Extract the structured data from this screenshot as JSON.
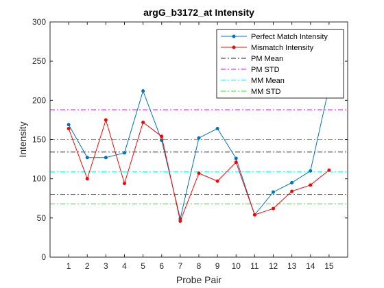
{
  "chart_data": {
    "type": "line",
    "title": "argG_b3172_at Intensity",
    "xlabel": "Probe Pair",
    "ylabel": "Intensity",
    "xlim": [
      0,
      16
    ],
    "ylim": [
      0,
      300
    ],
    "x_ticks": [
      1,
      2,
      3,
      4,
      5,
      6,
      7,
      8,
      9,
      10,
      11,
      12,
      13,
      14,
      15
    ],
    "y_ticks": [
      0,
      50,
      100,
      150,
      200,
      250,
      300
    ],
    "grid": false,
    "legend_position": "top-right",
    "x": [
      1,
      2,
      3,
      4,
      5,
      6,
      7,
      8,
      9,
      10,
      11,
      12,
      13,
      14,
      15
    ],
    "series": [
      {
        "name": "Perfect Match Intensity",
        "color": "#0072BD",
        "marker": "dot",
        "values": [
          169,
          127,
          127,
          133,
          212,
          149,
          49,
          152,
          164,
          126,
          54,
          83,
          95,
          110,
          217
        ]
      },
      {
        "name": "Mismatch Intensity",
        "color": "#FF0000",
        "marker": "dot",
        "values": [
          164,
          100,
          175,
          94,
          172,
          154,
          46,
          107,
          97,
          121,
          54,
          62,
          84,
          92,
          111
        ]
      }
    ],
    "reference_lines": [
      {
        "name": "PM Mean",
        "value": 134,
        "color": "#262626",
        "dash": "dash-dot"
      },
      {
        "name": "PM STD",
        "value": 188,
        "color": "#FF00FF",
        "dash": "dash-dot"
      },
      {
        "name": "PM STD",
        "value": 80,
        "color": "#FF00FF",
        "dash": "dash-dot",
        "legend": false
      },
      {
        "name": "MM Mean",
        "value": 109,
        "color": "#00FFFF",
        "dash": "dash-dot"
      },
      {
        "name": "MM STD",
        "value": 150,
        "color": "#00FF00",
        "dash": "dash-dot"
      },
      {
        "name": "MM STD",
        "value": 68,
        "color": "#00FF00",
        "dash": "dash-dot",
        "legend": false
      }
    ]
  }
}
